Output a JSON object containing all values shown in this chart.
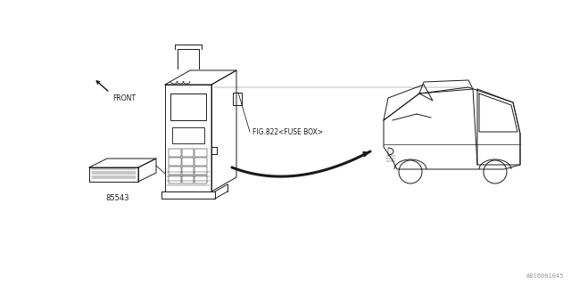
{
  "bg_color": "#ffffff",
  "line_color": "#1a1a1a",
  "diagram_id": "A816001045",
  "part_number": "85543",
  "fig_label": "FIG.822<FUSE BOX>",
  "front_label": "FRONT",
  "figsize": [
    6.4,
    3.2
  ],
  "dpi": 100
}
